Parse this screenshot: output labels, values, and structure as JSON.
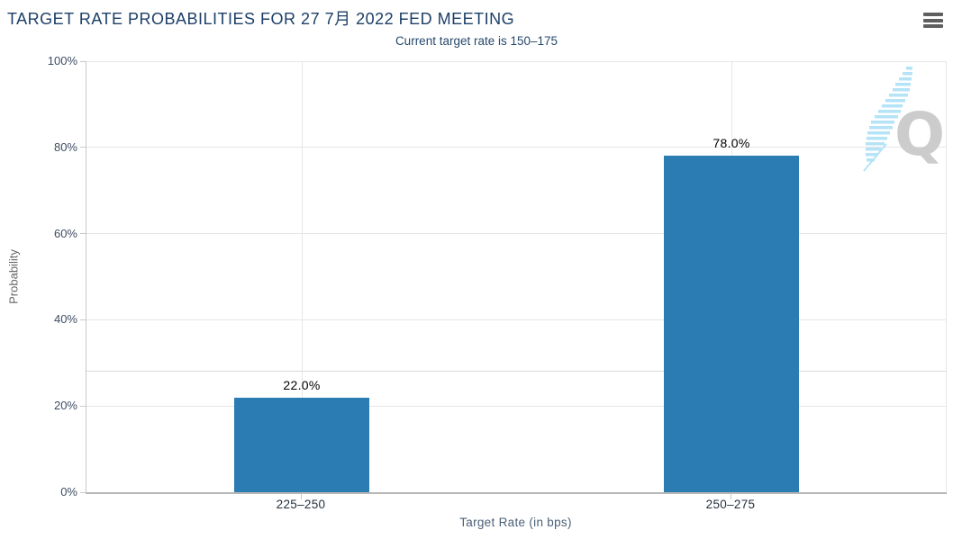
{
  "header": {
    "menu_icon": "hamburger-icon"
  },
  "chart_data": {
    "type": "bar",
    "title": "TARGET RATE PROBABILITIES FOR 27 7月 2022 FED MEETING",
    "subtitle": "Current target rate is 150–175",
    "categories": [
      "225–250",
      "250–275"
    ],
    "series": [
      {
        "name": "Probability",
        "values": [
          22.0,
          78.0
        ]
      }
    ],
    "data_labels": [
      "22.0%",
      "78.0%"
    ],
    "xlabel": "Target Rate (in bps)",
    "ylabel": "Probability",
    "ylim": [
      0,
      100
    ],
    "yticks": [
      0,
      20,
      40,
      60,
      80,
      100
    ],
    "ytick_labels": [
      "0%",
      "20%",
      "40%",
      "60%",
      "80%",
      "100%"
    ],
    "unlabeled_reference_line_pct": 28,
    "grid": true,
    "legend": "none"
  },
  "watermark": {
    "letter": "Q"
  },
  "colors": {
    "bar": "#2a7cb2",
    "title_text": "#1c3f68",
    "subtitle_text": "#27496d",
    "axis_label": "#3f4d63",
    "category_label": "#25303e",
    "data_label": "#000000",
    "xaxis_title": "#4a6076",
    "yaxis_title": "#666666",
    "gridline": "#e6e6e6",
    "reference_line": "#d9d9d9",
    "axis_line": "#c9c9c9",
    "menu_icon": "#5f5f5f",
    "watermark_q": "#cccccc",
    "watermark_dash": "#b5e3f7"
  }
}
